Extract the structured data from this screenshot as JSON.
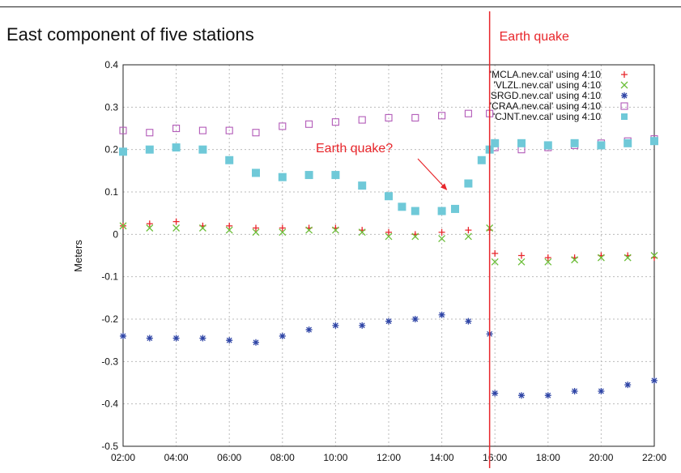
{
  "title": "East component of five stations",
  "chart_data": {
    "type": "scatter",
    "title": "East component of five stations",
    "xlabel": "",
    "ylabel": "Meters",
    "x_ticks": [
      "02:00",
      "04:00",
      "06:00",
      "08:00",
      "10:00",
      "12:00",
      "14:00",
      "16:00",
      "18:00",
      "20:00",
      "22:00"
    ],
    "y_ticks": [
      "0.4",
      "0.3",
      "0.2",
      "0.1",
      "0",
      "-0.1",
      "-0.2",
      "-0.3",
      "-0.4",
      "-0.5"
    ],
    "xlim_hours": [
      2,
      22
    ],
    "ylim": [
      -0.5,
      0.4
    ],
    "grid": true,
    "legend_position": "top-right",
    "series": [
      {
        "name": "'MCLA.nev.cal' using 4:10",
        "color": "#e8262b",
        "marker": "plus",
        "x": [
          2,
          3,
          4,
          5,
          6,
          7,
          8,
          9,
          10,
          11,
          12,
          13,
          14,
          15,
          15.8,
          16,
          17,
          18,
          19,
          20,
          21,
          22
        ],
        "y": [
          0.02,
          0.025,
          0.03,
          0.02,
          0.02,
          0.015,
          0.015,
          0.015,
          0.015,
          0.01,
          0.005,
          0.0,
          0.005,
          0.01,
          0.01,
          -0.045,
          -0.05,
          -0.055,
          -0.055,
          -0.05,
          -0.05,
          -0.055
        ]
      },
      {
        "name": "'VLZL.nev.cal' using 4:10",
        "color": "#6cbf3a",
        "marker": "cross",
        "x": [
          2,
          3,
          4,
          5,
          6,
          7,
          8,
          9,
          10,
          11,
          12,
          13,
          14,
          15,
          15.8,
          16,
          17,
          18,
          19,
          20,
          21,
          22
        ],
        "y": [
          0.02,
          0.015,
          0.015,
          0.015,
          0.01,
          0.005,
          0.005,
          0.01,
          0.01,
          0.005,
          -0.005,
          -0.005,
          -0.01,
          -0.005,
          0.015,
          -0.065,
          -0.065,
          -0.065,
          -0.06,
          -0.055,
          -0.055,
          -0.05
        ]
      },
      {
        "name": "'SRGD.nev.cal' using 4:10",
        "color": "#2f45a6",
        "marker": "star",
        "x": [
          2,
          3,
          4,
          5,
          6,
          7,
          8,
          9,
          10,
          11,
          12,
          13,
          14,
          15,
          15.8,
          16,
          17,
          18,
          19,
          20,
          21,
          22
        ],
        "y": [
          -0.24,
          -0.245,
          -0.245,
          -0.245,
          -0.25,
          -0.255,
          -0.24,
          -0.225,
          -0.215,
          -0.215,
          -0.205,
          -0.2,
          -0.19,
          -0.205,
          -0.235,
          -0.375,
          -0.38,
          -0.38,
          -0.37,
          -0.37,
          -0.355,
          -0.345
        ]
      },
      {
        "name": "'CRAA.nev.cal' using 4:10",
        "color": "#b25ab8",
        "marker": "square-open",
        "x": [
          2,
          3,
          4,
          5,
          6,
          7,
          8,
          9,
          10,
          11,
          12,
          13,
          14,
          15,
          15.8,
          16,
          17,
          18,
          19,
          20,
          21,
          22
        ],
        "y": [
          0.245,
          0.24,
          0.25,
          0.245,
          0.245,
          0.24,
          0.255,
          0.26,
          0.265,
          0.27,
          0.275,
          0.275,
          0.28,
          0.285,
          0.285,
          0.205,
          0.2,
          0.205,
          0.21,
          0.215,
          0.22,
          0.225
        ]
      },
      {
        "name": "'CJNT.nev.cal' using 4:10",
        "color": "#6fc9d8",
        "marker": "square-filled",
        "x": [
          2,
          3,
          4,
          5,
          6,
          7,
          8,
          9,
          10,
          11,
          12,
          12.5,
          13,
          14,
          14.5,
          15,
          15.5,
          15.8,
          16,
          17,
          18,
          19,
          20,
          21,
          22
        ],
        "y": [
          0.195,
          0.2,
          0.205,
          0.2,
          0.175,
          0.145,
          0.135,
          0.14,
          0.14,
          0.115,
          0.09,
          0.065,
          0.055,
          0.055,
          0.06,
          0.12,
          0.175,
          0.2,
          0.215,
          0.215,
          0.21,
          0.215,
          0.21,
          0.215,
          0.22
        ]
      }
    ],
    "annotations": [
      {
        "text": "Earth quake",
        "type": "vertical-line",
        "x_hours": 15.8,
        "color": "#e8262b"
      },
      {
        "text": "Earth quake?",
        "type": "arrow-label",
        "target_x_hours": 14.3,
        "target_y": 0.1,
        "color": "#e8262b"
      }
    ]
  }
}
